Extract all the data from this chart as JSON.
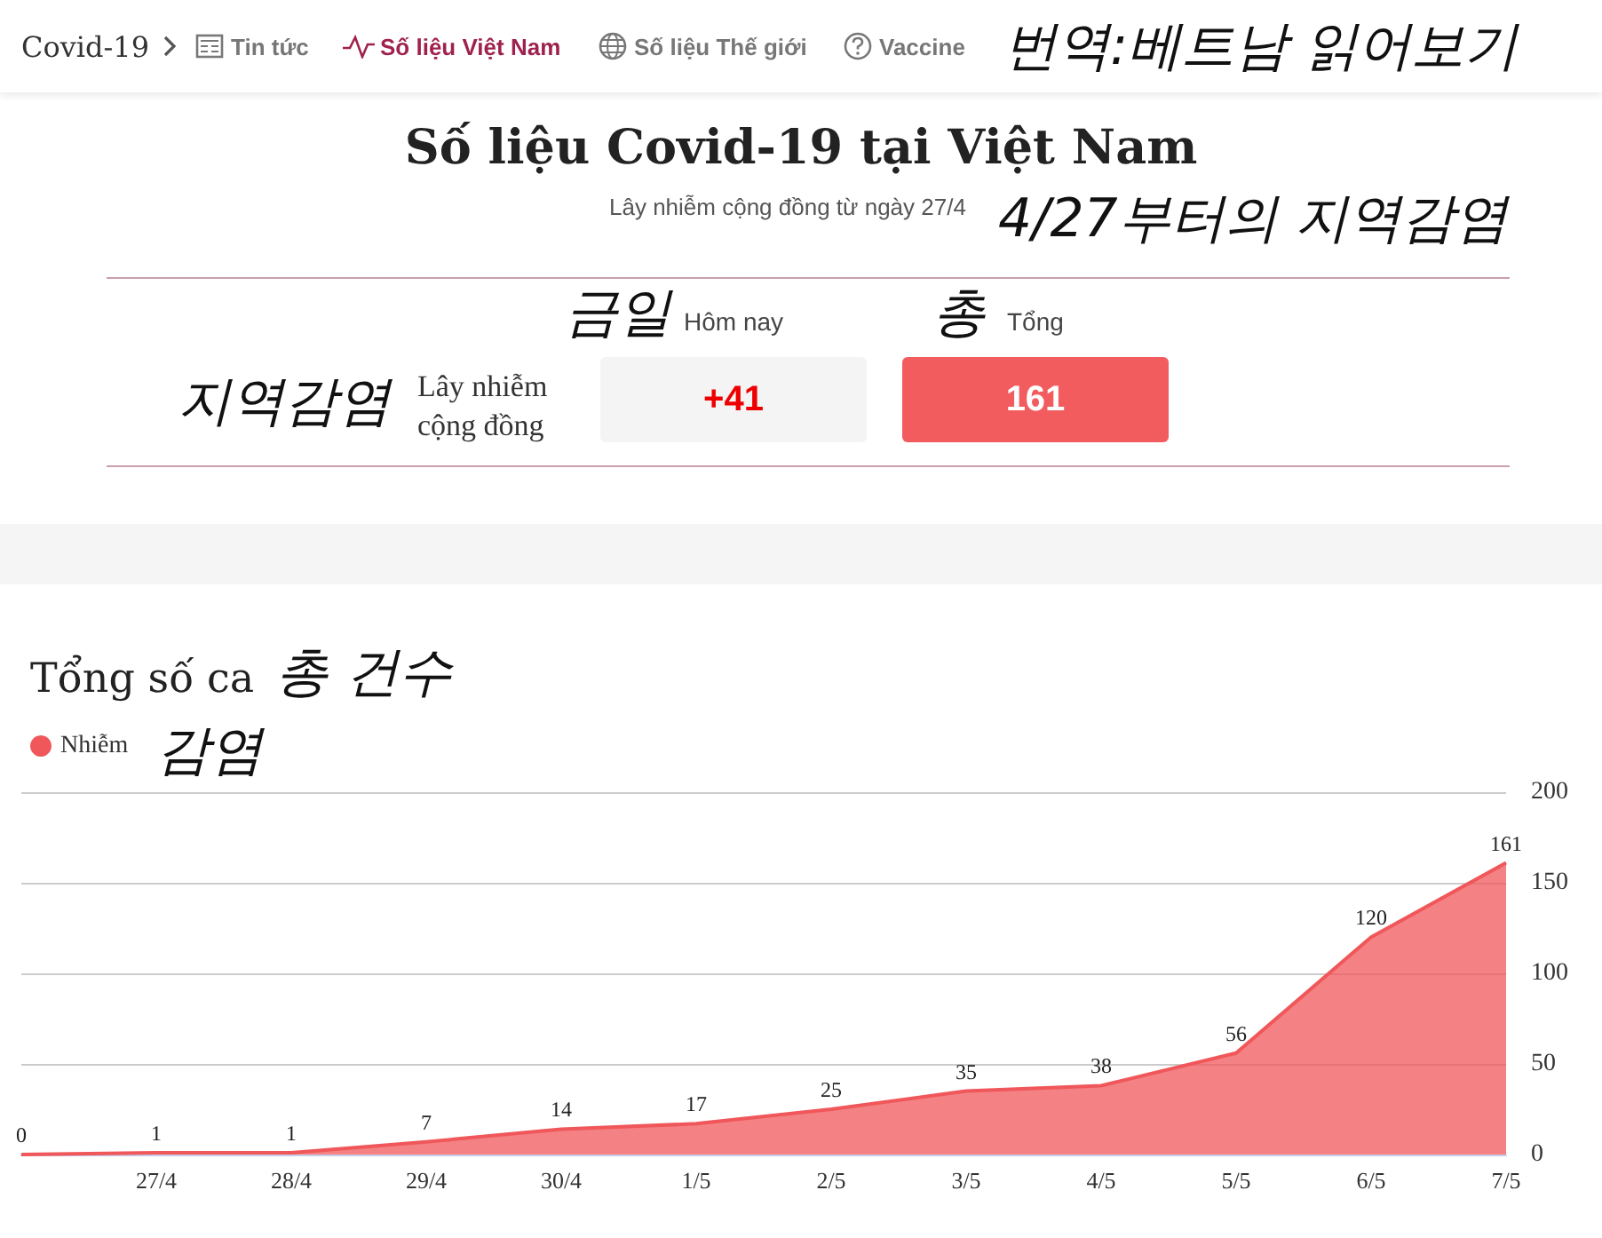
{
  "chart_data": [
    {
      "type": "other",
      "title": "Số liệu Covid-19 tại Việt Nam",
      "subtitle": "Lây nhiễm cộng đồng từ ngày 27/4",
      "annotations": [
        "Covid-19",
        "Tin tức",
        "Số liệu Việt Nam",
        "Số liệu Thế giới",
        "Vaccine",
        "번역:베트남 읽어보기",
        "4/27부터의 지역감염",
        "금일",
        "Hôm nay",
        "총",
        "Tổng",
        "지역감염",
        "Lây nhiễm cộng đồng",
        "+41",
        "161"
      ]
    },
    {
      "type": "area",
      "title": "Tổng số ca",
      "annotations": [
        "총 건수",
        "감염"
      ],
      "categories": [
        null,
        "27/4",
        "28/4",
        "29/4",
        "30/4",
        "1/5",
        "2/5",
        "3/5",
        "4/5",
        "5/5",
        "6/5",
        "7/5"
      ],
      "series": [
        {
          "name": "Nhiễm",
          "color": "#f0575a",
          "values": [
            0,
            1,
            1,
            7,
            14,
            17,
            25,
            35,
            38,
            56,
            120,
            161
          ]
        }
      ],
      "ylim": [
        0,
        200
      ],
      "yticks": [
        0,
        50,
        100,
        150,
        200
      ],
      "grid": "y",
      "legend": "top left",
      "data_labels": true,
      "marker": "none"
    }
  ]
}
